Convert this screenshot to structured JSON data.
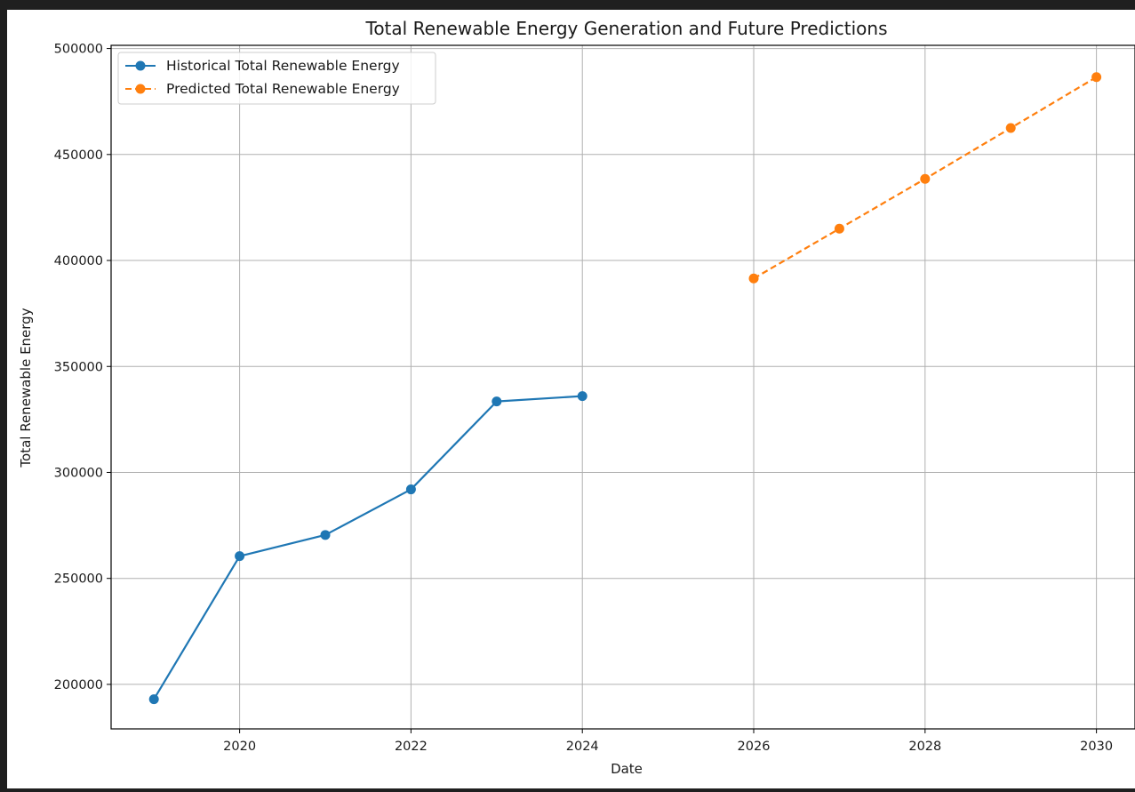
{
  "chart_data": {
    "type": "line",
    "title": "Total Renewable Energy Generation and Future Predictions",
    "xlabel": "Date",
    "ylabel": "Total Renewable Energy",
    "xlim": [
      2018.5,
      2030.45
    ],
    "ylim": [
      179000,
      501500
    ],
    "x_ticks": [
      "2020",
      "2022",
      "2024",
      "2026",
      "2028",
      "2030"
    ],
    "y_ticks": [
      "200000",
      "250000",
      "300000",
      "350000",
      "400000",
      "450000",
      "500000"
    ],
    "grid": true,
    "legend_position": "top-left",
    "series": [
      {
        "name": "Historical Total Renewable Energy",
        "color": "#1f77b4",
        "line_style": "solid",
        "marker": "circle",
        "x": [
          2019,
          2020,
          2021,
          2022,
          2023,
          2024
        ],
        "y": [
          193000,
          260500,
          270500,
          292000,
          333500,
          336000
        ]
      },
      {
        "name": "Predicted Total Renewable Energy",
        "color": "#ff7f0e",
        "line_style": "dashed",
        "marker": "circle",
        "x": [
          2026,
          2027,
          2028,
          2029,
          2030
        ],
        "y": [
          391500,
          415000,
          438500,
          462500,
          486500
        ]
      }
    ]
  }
}
